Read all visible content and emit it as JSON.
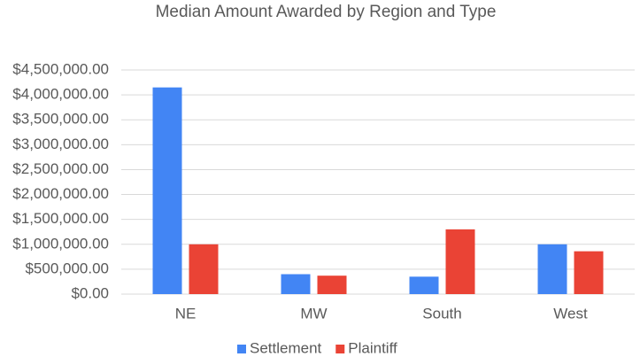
{
  "chart_data": {
    "type": "bar",
    "title": "Median Amount Awarded by Region and Type",
    "categories": [
      "NE",
      "MW",
      "South",
      "West"
    ],
    "series": [
      {
        "name": "Settlement",
        "color": "#4285f4",
        "values": [
          4150000,
          400000,
          350000,
          1000000
        ]
      },
      {
        "name": "Plaintiff",
        "color": "#ea4335",
        "values": [
          1000000,
          370000,
          1300000,
          860000
        ]
      }
    ],
    "ylim": [
      0,
      4500000
    ],
    "yticks": [
      {
        "value": 0,
        "label": "$0.00"
      },
      {
        "value": 500000,
        "label": "$500,000.00"
      },
      {
        "value": 1000000,
        "label": "$1,000,000.00"
      },
      {
        "value": 1500000,
        "label": "$1,500,000.00"
      },
      {
        "value": 2000000,
        "label": "$2,000,000.00"
      },
      {
        "value": 2500000,
        "label": "$2,500,000.00"
      },
      {
        "value": 3000000,
        "label": "$3,000,000.00"
      },
      {
        "value": 3500000,
        "label": "$3,500,000.00"
      },
      {
        "value": 4000000,
        "label": "$4,000,000.00"
      },
      {
        "value": 4500000,
        "label": "$4,500,000.00"
      }
    ],
    "grid": true,
    "legend": "bottom"
  }
}
